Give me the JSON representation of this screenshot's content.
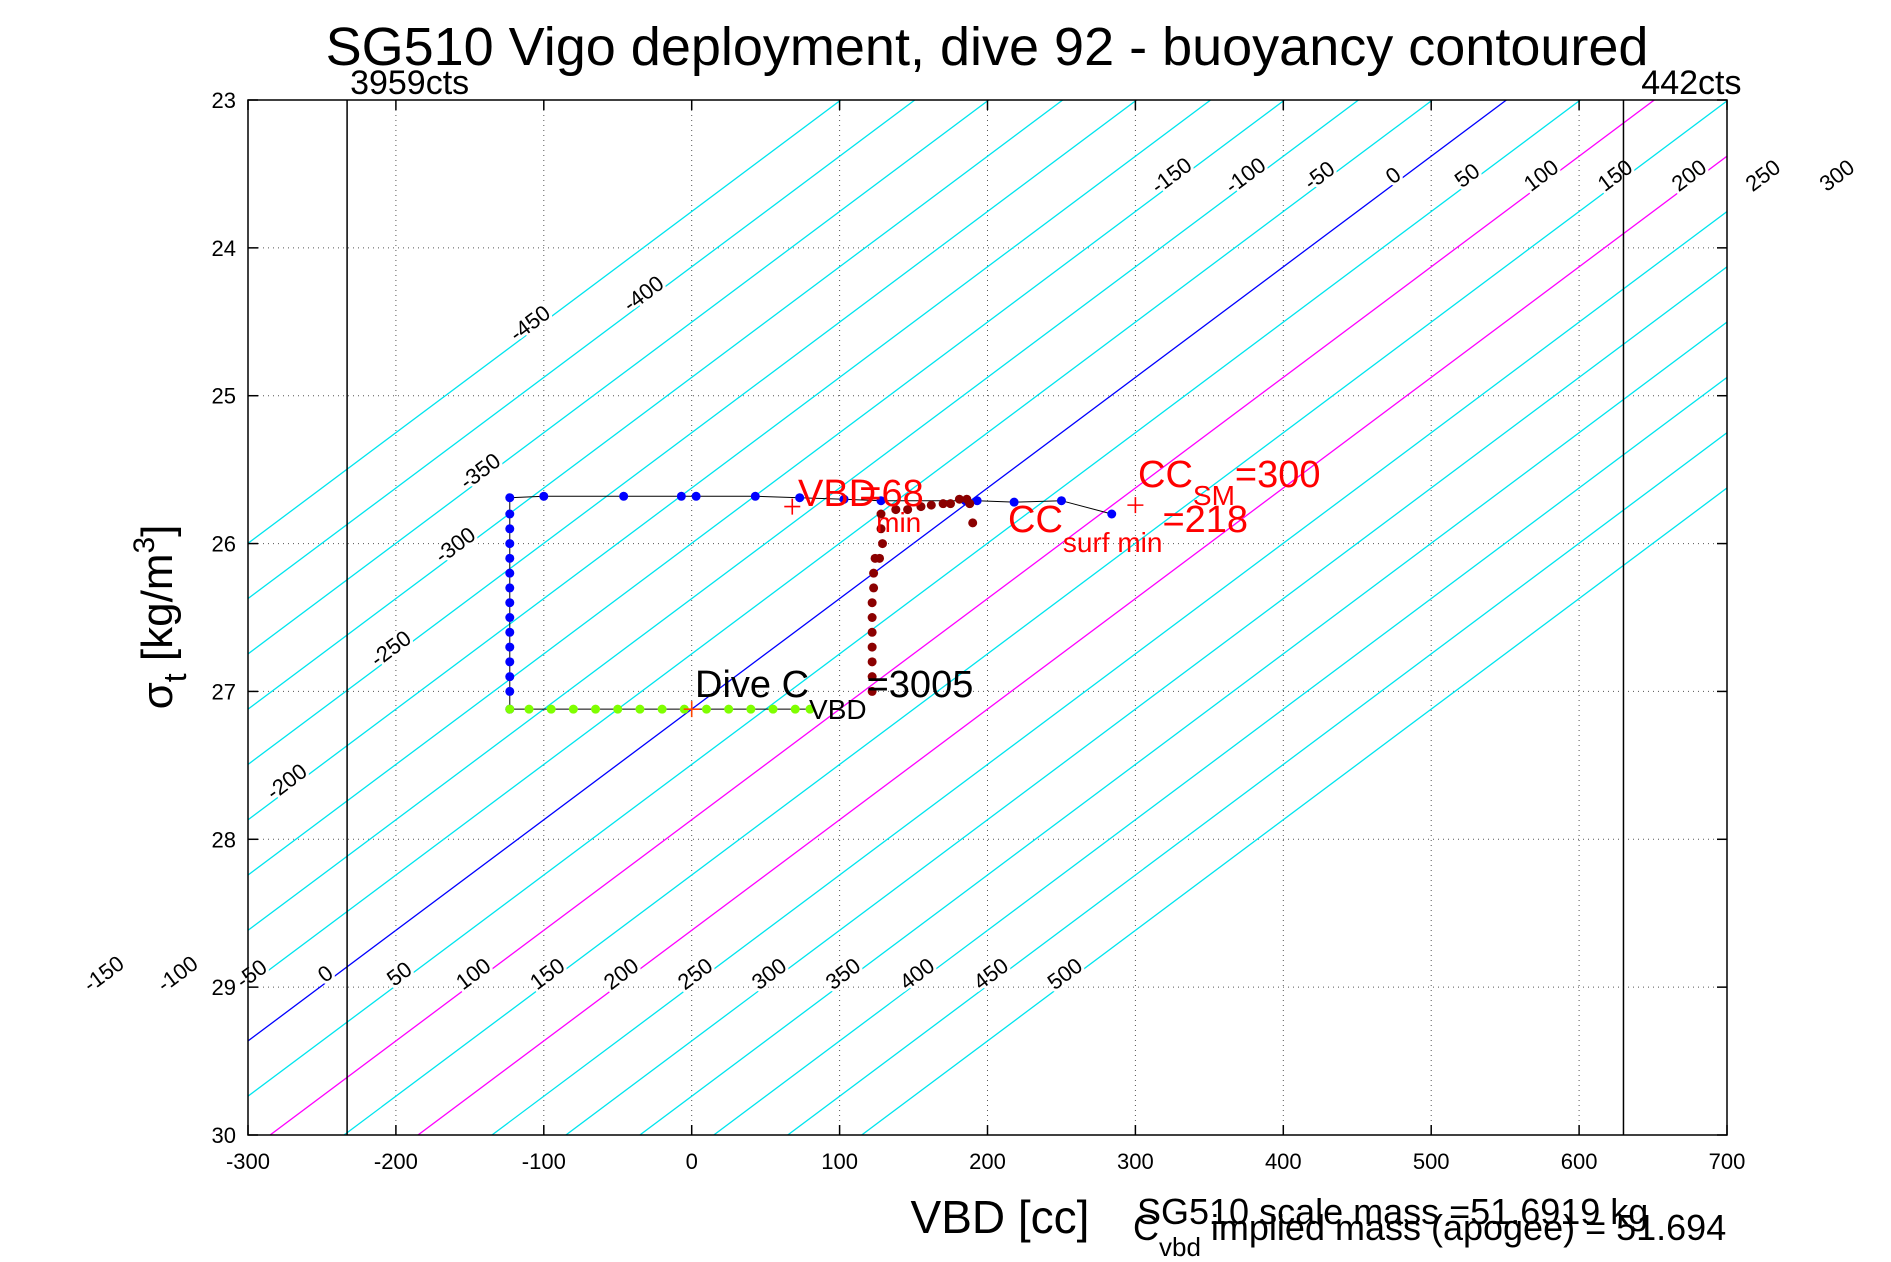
{
  "chart_data": {
    "type": "scatter",
    "title": "SG510 Vigo deployment, dive 92 - buoyancy contoured",
    "xlabel": "VBD [cc]",
    "ylabel": {
      "base": "σ",
      "sub": "t",
      "rest": " [kg/m",
      "sup": "3",
      "end": "]"
    },
    "xlim": [
      -300,
      700
    ],
    "ylim": [
      23,
      30
    ],
    "y_reversed": true,
    "xticks": [
      -300,
      -200,
      -100,
      0,
      100,
      200,
      300,
      400,
      500,
      600,
      700
    ],
    "yticks": [
      23,
      24,
      25,
      26,
      27,
      28,
      29,
      30
    ],
    "grid": "dotted",
    "bounds": [
      {
        "x": -233,
        "label": "3959cts",
        "side": "left"
      },
      {
        "x": 630,
        "label": "442cts",
        "side": "right"
      }
    ],
    "contours": {
      "slope_cc_per_sigma": 133.7,
      "ref_sigma": 27.12,
      "levels": [
        -450,
        -400,
        -350,
        -300,
        -250,
        -200,
        -150,
        -100,
        -50,
        0,
        50,
        100,
        150,
        200,
        250,
        300,
        350,
        400,
        450,
        500
      ],
      "colors": {
        "default": "#00e5ee",
        "zero": "#0000ff",
        "highlight": "#ff00ff"
      },
      "highlight_levels": [
        100,
        200
      ],
      "top_labels": [
        "-450",
        "-400",
        "-350",
        "-300",
        "-250",
        "-200",
        "-150",
        "-100",
        "-50",
        "0",
        "50",
        "100",
        "150",
        "200",
        "250",
        "300",
        "350",
        "400",
        "450",
        "500"
      ],
      "bottom_labels": [
        "-150",
        "-100",
        "-50",
        "0",
        "50",
        "100",
        "150",
        "200",
        "250",
        "300",
        "350",
        "400",
        "450",
        "500"
      ]
    },
    "series": [
      {
        "name": "",
        "color": "#0000ff",
        "connect": true,
        "points": [
          [
            -123,
            27.12
          ],
          [
            -123,
            27.0
          ],
          [
            -123,
            26.9
          ],
          [
            -123,
            26.8
          ],
          [
            -123,
            26.7
          ],
          [
            -123,
            26.6
          ],
          [
            -123,
            26.5
          ],
          [
            -123,
            26.4
          ],
          [
            -123,
            26.3
          ],
          [
            -123,
            26.2
          ],
          [
            -123,
            26.1
          ],
          [
            -123,
            26.0
          ],
          [
            -123,
            25.9
          ],
          [
            -123,
            25.8
          ],
          [
            -123,
            25.69
          ],
          [
            -100,
            25.68
          ],
          [
            -46,
            25.68
          ],
          [
            -7,
            25.68
          ],
          [
            3,
            25.68
          ],
          [
            43,
            25.68
          ],
          [
            73,
            25.69
          ],
          [
            103,
            25.7
          ],
          [
            128,
            25.71
          ],
          [
            185,
            25.71
          ],
          [
            193,
            25.71
          ],
          [
            218,
            25.72
          ],
          [
            250,
            25.71
          ],
          [
            284,
            25.8
          ]
        ]
      },
      {
        "name": "",
        "color": "#8b0000",
        "connect": false,
        "points": [
          [
            122,
            27.0
          ],
          [
            122,
            26.9
          ],
          [
            122,
            26.8
          ],
          [
            122,
            26.7
          ],
          [
            122,
            26.6
          ],
          [
            122,
            26.5
          ],
          [
            122,
            26.4
          ],
          [
            123,
            26.3
          ],
          [
            123,
            26.2
          ],
          [
            124,
            26.1
          ],
          [
            127,
            26.1
          ],
          [
            129,
            26.0
          ],
          [
            128,
            25.9
          ],
          [
            128,
            25.8
          ],
          [
            138,
            25.77
          ],
          [
            146,
            25.77
          ],
          [
            155,
            25.75
          ],
          [
            162,
            25.74
          ],
          [
            170,
            25.73
          ],
          [
            175,
            25.73
          ],
          [
            181,
            25.7
          ],
          [
            186,
            25.7
          ],
          [
            188,
            25.73
          ],
          [
            190,
            25.86
          ]
        ]
      },
      {
        "name": "",
        "color": "#7fff00",
        "connect": true,
        "points": [
          [
            -123,
            27.12
          ],
          [
            -110,
            27.12
          ],
          [
            -95,
            27.12
          ],
          [
            -80,
            27.12
          ],
          [
            -65,
            27.12
          ],
          [
            -50,
            27.12
          ],
          [
            -35,
            27.12
          ],
          [
            -20,
            27.12
          ],
          [
            -5,
            27.12
          ],
          [
            10,
            27.12
          ],
          [
            25,
            27.12
          ],
          [
            40,
            27.12
          ],
          [
            55,
            27.12
          ],
          [
            70,
            27.12
          ],
          [
            80,
            27.12
          ]
        ]
      }
    ],
    "markers": [
      {
        "x": 68,
        "y": 25.75,
        "color": "#ff0000"
      },
      {
        "x": 300,
        "y": 25.74,
        "color": "#ff0000"
      },
      {
        "x": 0,
        "y": 27.12,
        "color": "#ff4500"
      }
    ],
    "annotations": {
      "vbd_min": {
        "base": "VBD",
        "sub": "min",
        "val": "=68"
      },
      "cc_sm": {
        "base": "CC",
        "sub": "SM",
        "val": "=300"
      },
      "cc_surf": {
        "base": "CC",
        "sub": "surf min",
        "val": "=218"
      },
      "dive_c": {
        "base": "Dive C",
        "sub": "VBD",
        "val": "=3005"
      },
      "scale_mass": "SG510 scale mass =51.6919 kg",
      "implied_mass": {
        "base": "C",
        "sub": "vbd",
        "val": " implied mass (apogee) = 51.694"
      }
    }
  }
}
